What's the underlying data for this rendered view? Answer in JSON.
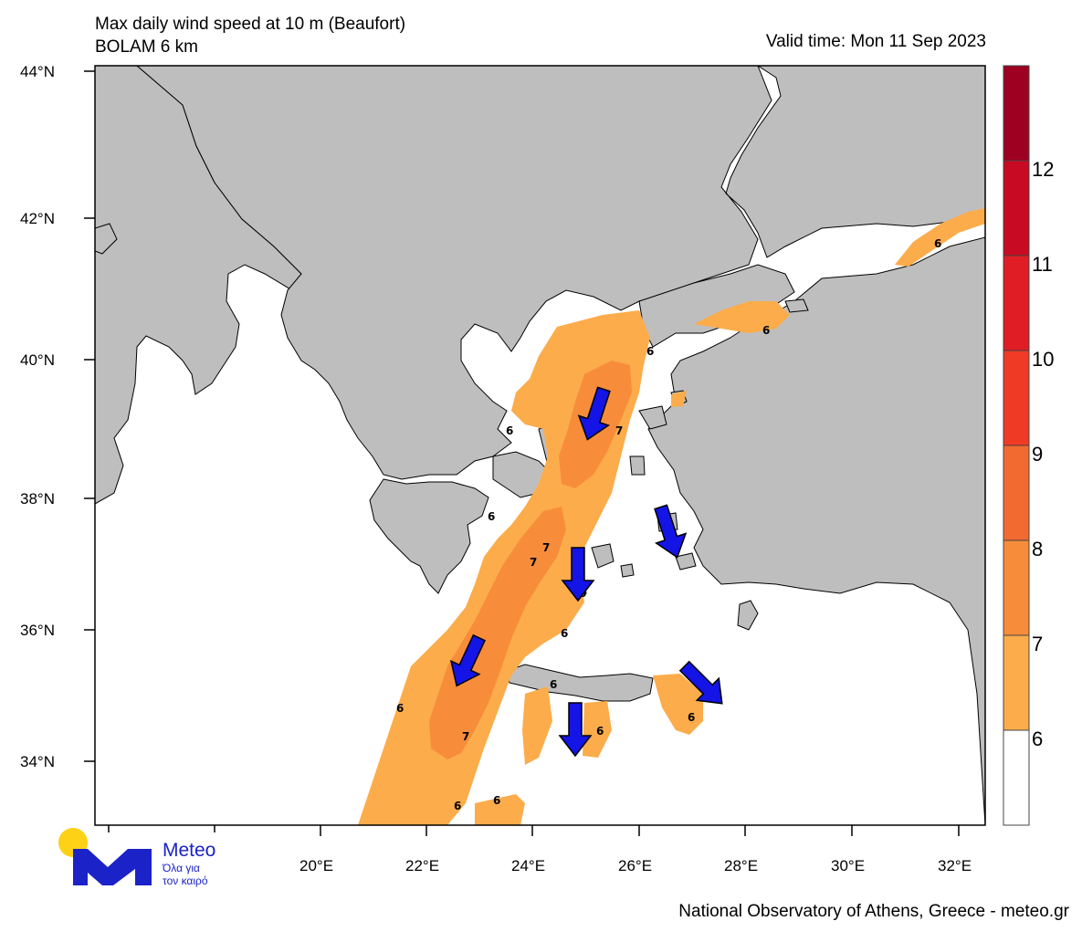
{
  "header": {
    "title_line1": "Max daily wind speed at 10 m (Beaufort)",
    "title_line2": "BOLAM 6 km",
    "valid_time": "Valid time: Mon 11 Sep 2023"
  },
  "map": {
    "lat_labels": [
      "44°N",
      "42°N",
      "40°N",
      "38°N",
      "36°N",
      "34°N"
    ],
    "lon_labels": [
      "20°E",
      "22°E",
      "24°E",
      "26°E",
      "28°E",
      "30°E",
      "32°E"
    ],
    "contour_labels": [
      "6",
      "6",
      "6",
      "6",
      "6",
      "6",
      "6",
      "6",
      "6",
      "6",
      "6",
      "6",
      "6",
      "7",
      "7",
      "7",
      "7"
    ],
    "wind_arrows": 6,
    "land_color": "#bebebe",
    "sea_color": "#ffffff"
  },
  "colorbar": {
    "labels": [
      "12",
      "11",
      "10",
      "9",
      "8",
      "7",
      "6"
    ],
    "colors": [
      "#9e0022",
      "#c80a22",
      "#e01c24",
      "#ef3a25",
      "#f36a30",
      "#f78d3a",
      "#fcac4b",
      "#ffffff"
    ]
  },
  "logo": {
    "name": "Meteo",
    "tagline_line1": "Όλα για",
    "tagline_line2": "τον καιρό"
  },
  "footer": "National Observatory of Athens, Greece - meteo.gr"
}
